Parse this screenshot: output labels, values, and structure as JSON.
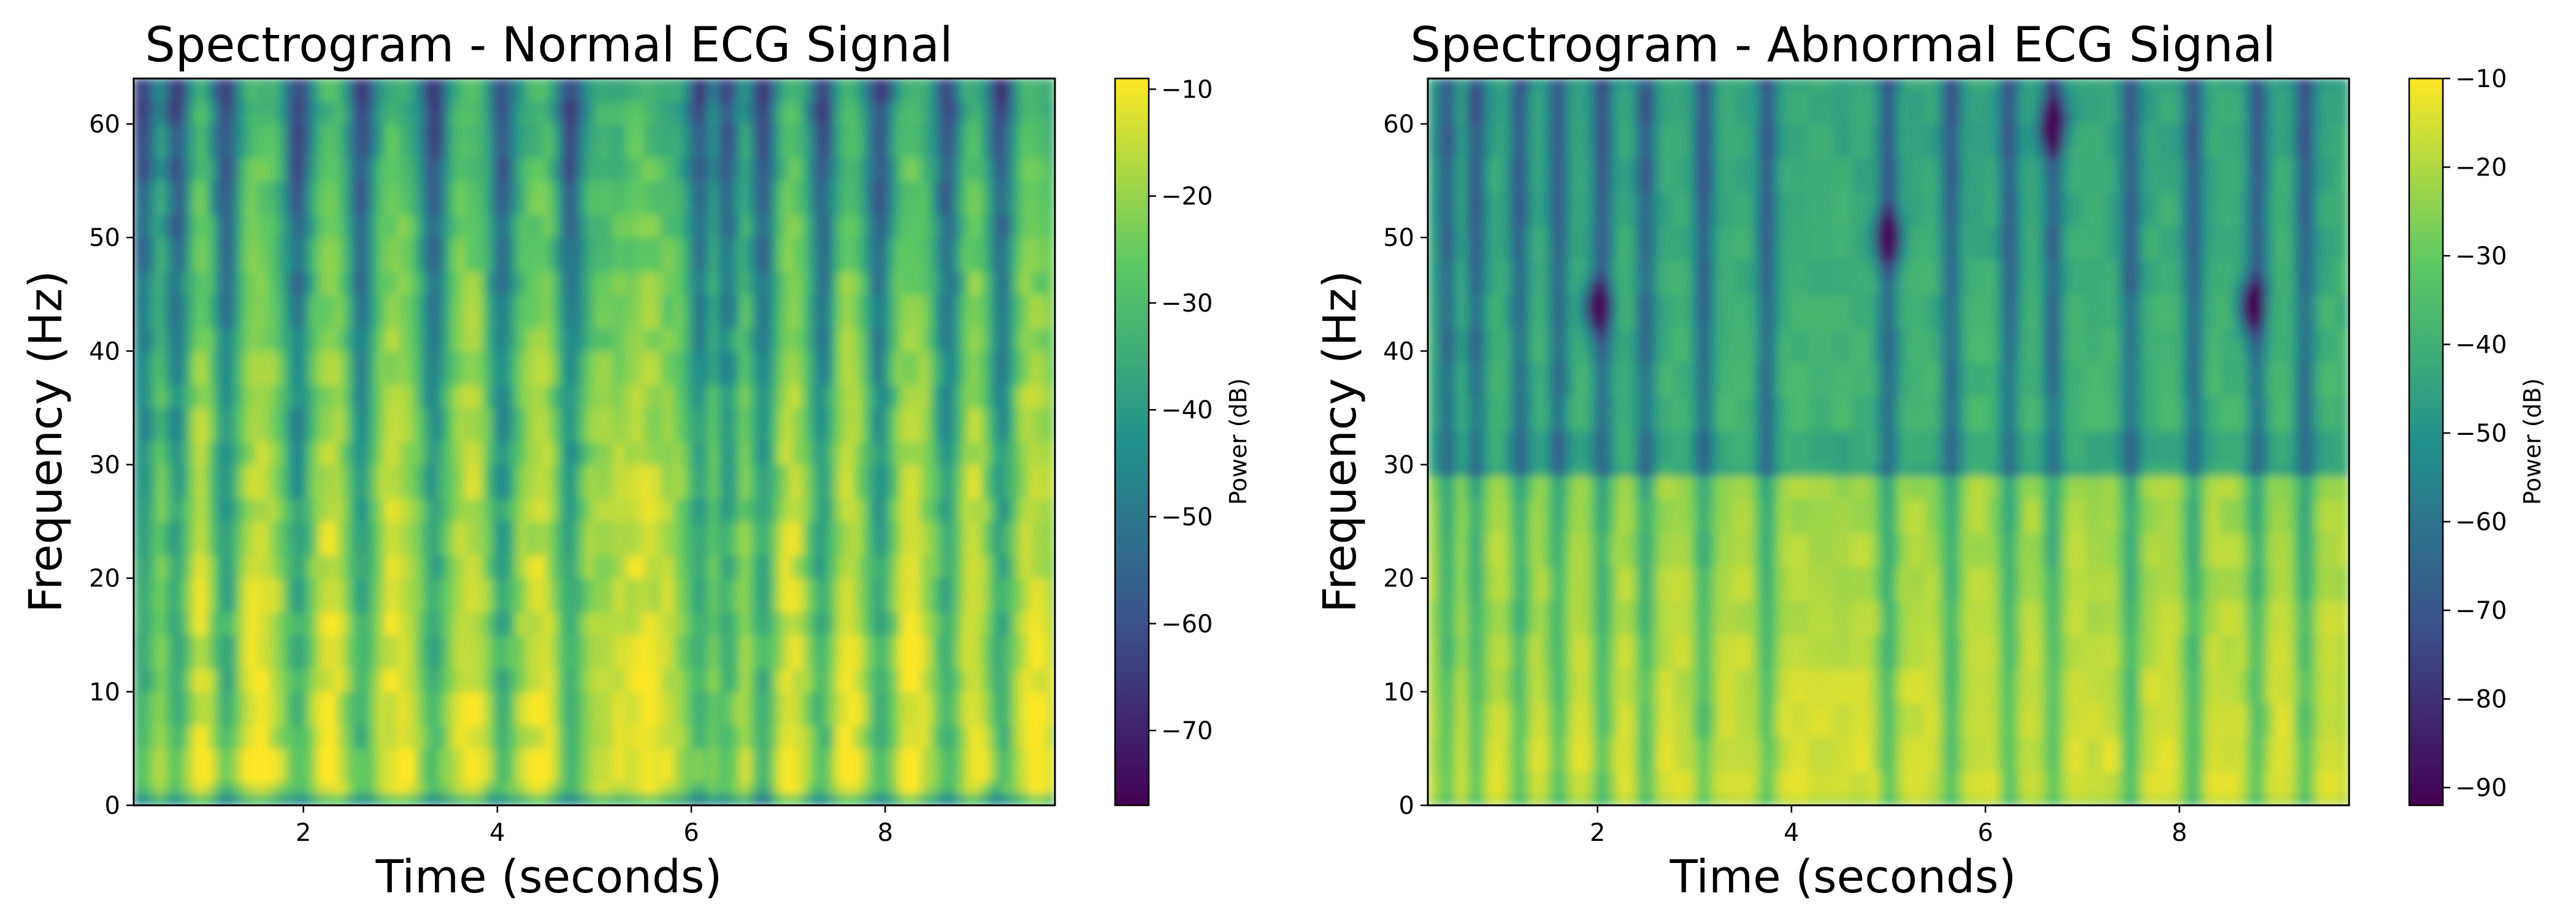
{
  "colormap": [
    "#440154",
    "#3b528b",
    "#21918c",
    "#5ec962",
    "#fde725"
  ],
  "chart_data": [
    {
      "type": "heatmap",
      "title": "Spectrogram - Normal ECG Signal",
      "xlabel": "Time (seconds)",
      "ylabel": "Frequency (Hz)",
      "xlim": [
        0.25,
        9.75
      ],
      "ylim": [
        0,
        64
      ],
      "xticks": [
        2,
        4,
        6,
        8
      ],
      "yticks": [
        0,
        10,
        20,
        30,
        40,
        50,
        60
      ],
      "colorbar": {
        "label": "Power (dB)",
        "range": [
          -77,
          -9
        ],
        "ticks": [
          -10,
          -20,
          -30,
          -40,
          -50,
          -60,
          -70
        ]
      },
      "beat_times": [
        0.95,
        1.55,
        2.3,
        2.95,
        3.75,
        4.5,
        5.5,
        6.25,
        7.0,
        7.6,
        8.25,
        8.9,
        9.5
      ],
      "dip_times": [
        0.35,
        0.7,
        1.2,
        1.95,
        2.6,
        3.35,
        4.05,
        4.75,
        6.1,
        6.35,
        6.75,
        7.35,
        7.95,
        8.65,
        9.2
      ]
    },
    {
      "type": "heatmap",
      "title": "Spectrogram - Abnormal ECG Signal",
      "xlabel": "Time (seconds)",
      "ylabel": "Frequency (Hz)",
      "xlim": [
        0.25,
        9.75
      ],
      "ylim": [
        0,
        64
      ],
      "xticks": [
        2,
        4,
        6,
        8
      ],
      "yticks": [
        0,
        10,
        20,
        30,
        40,
        50,
        60
      ],
      "colorbar": {
        "label": "Power (dB)",
        "range": [
          -92,
          -10
        ],
        "ticks": [
          -10,
          -20,
          -30,
          -40,
          -50,
          -60,
          -70,
          -80,
          -90
        ]
      },
      "dip_times": [
        0.45,
        0.75,
        1.2,
        1.6,
        2.05,
        2.5,
        3.1,
        3.75,
        5.0,
        5.65,
        6.25,
        6.7,
        7.5,
        8.15,
        8.8,
        9.3
      ],
      "spots": [
        {
          "t": 5.0,
          "f": 50
        },
        {
          "t": 8.75,
          "f": 44
        },
        {
          "t": 2.0,
          "f": 44
        },
        {
          "t": 6.7,
          "f": 60
        }
      ]
    }
  ]
}
